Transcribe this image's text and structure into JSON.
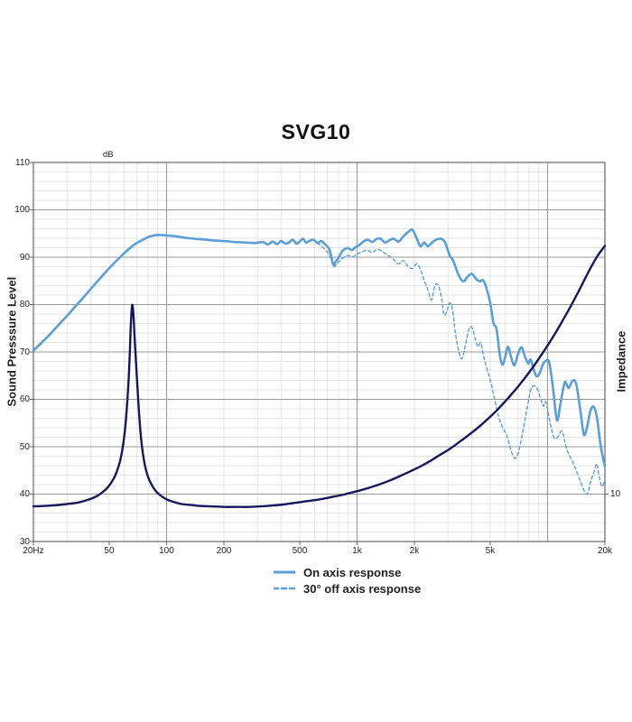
{
  "title": "SVG10",
  "legend": {
    "items": [
      {
        "label": "On axis response",
        "style": "solid"
      },
      {
        "label": "30° off axis response",
        "style": "dashed"
      }
    ]
  },
  "colors": {
    "response_blue": "#5b9fd6",
    "impedance_navy": "#17175c",
    "grid_major": "#9a9a9a",
    "grid_minor": "#dddddd",
    "frame": "#666666",
    "text": "#222222"
  },
  "chart_data": {
    "type": "line",
    "title": "SVG10",
    "x_scale": "log",
    "x_range": [
      20,
      20000
    ],
    "y_left": {
      "label": "Sound Presssure Level",
      "unit": "dB",
      "range": [
        30,
        110
      ],
      "major_step": 10,
      "minor_step": 2,
      "ticks": [
        110,
        100,
        90,
        80,
        70,
        60,
        50,
        40,
        30
      ]
    },
    "y_right": {
      "label": "Impedance",
      "ticks": [
        {
          "label": "10",
          "at_left_db": 40
        }
      ]
    },
    "x_ticks": [
      {
        "label": "20Hz",
        "f": 20
      },
      {
        "label": "50",
        "f": 50
      },
      {
        "label": "100",
        "f": 100
      },
      {
        "label": "200",
        "f": 200
      },
      {
        "label": "500",
        "f": 500
      },
      {
        "label": "1k",
        "f": 1000
      },
      {
        "label": "2k",
        "f": 2000
      },
      {
        "label": "5k",
        "f": 5000
      },
      {
        "label": "20k",
        "f": 20000
      }
    ],
    "grid": {
      "shown": true,
      "emphasized_freqs": [
        100,
        1000,
        10000
      ]
    },
    "legend_position": "bottom-center",
    "series": [
      {
        "name": "On axis response",
        "style": "solid",
        "color": "#5b9fd6",
        "width": 2.6,
        "points": [
          [
            20,
            70.3
          ],
          [
            22,
            71.9
          ],
          [
            24,
            73.4
          ],
          [
            26,
            74.9
          ],
          [
            28,
            76.3
          ],
          [
            30,
            77.6
          ],
          [
            33,
            79.5
          ],
          [
            36,
            81.2
          ],
          [
            40,
            83.3
          ],
          [
            44,
            85.2
          ],
          [
            48,
            86.9
          ],
          [
            52,
            88.4
          ],
          [
            57,
            90.0
          ],
          [
            62,
            91.4
          ],
          [
            68,
            92.7
          ],
          [
            75,
            93.7
          ],
          [
            82,
            94.4
          ],
          [
            90,
            94.7
          ],
          [
            100,
            94.6
          ],
          [
            112,
            94.4
          ],
          [
            125,
            94.1
          ],
          [
            140,
            93.9
          ],
          [
            160,
            93.7
          ],
          [
            180,
            93.5
          ],
          [
            200,
            93.4
          ],
          [
            230,
            93.2
          ],
          [
            260,
            93.1
          ],
          [
            290,
            93.0
          ],
          [
            320,
            93.2
          ],
          [
            340,
            92.7
          ],
          [
            360,
            93.3
          ],
          [
            380,
            92.8
          ],
          [
            400,
            93.4
          ],
          [
            420,
            92.9
          ],
          [
            440,
            93.1
          ],
          [
            460,
            93.7
          ],
          [
            480,
            92.9
          ],
          [
            500,
            93.3
          ],
          [
            520,
            93.9
          ],
          [
            540,
            93.1
          ],
          [
            560,
            93.4
          ],
          [
            590,
            93.7
          ],
          [
            620,
            93.0
          ],
          [
            650,
            93.4
          ],
          [
            680,
            92.7
          ],
          [
            710,
            91.9
          ],
          [
            730,
            90.5
          ],
          [
            750,
            88.4
          ],
          [
            775,
            89.1
          ],
          [
            800,
            89.9
          ],
          [
            830,
            91.1
          ],
          [
            860,
            91.7
          ],
          [
            900,
            91.9
          ],
          [
            940,
            91.5
          ],
          [
            980,
            92.1
          ],
          [
            1030,
            92.6
          ],
          [
            1080,
            93.3
          ],
          [
            1140,
            93.7
          ],
          [
            1200,
            93.2
          ],
          [
            1260,
            93.8
          ],
          [
            1330,
            93.9
          ],
          [
            1400,
            93.1
          ],
          [
            1480,
            93.6
          ],
          [
            1560,
            93.9
          ],
          [
            1650,
            93.3
          ],
          [
            1750,
            94.4
          ],
          [
            1850,
            95.3
          ],
          [
            1950,
            95.8
          ],
          [
            2060,
            93.9
          ],
          [
            2150,
            92.3
          ],
          [
            2250,
            93.1
          ],
          [
            2350,
            92.3
          ],
          [
            2460,
            93.0
          ],
          [
            2600,
            93.7
          ],
          [
            2760,
            93.9
          ],
          [
            2900,
            93.1
          ],
          [
            3060,
            90.4
          ],
          [
            3200,
            89.2
          ],
          [
            3400,
            86.4
          ],
          [
            3600,
            84.9
          ],
          [
            3800,
            85.9
          ],
          [
            4000,
            86.5
          ],
          [
            4200,
            85.5
          ],
          [
            4400,
            84.9
          ],
          [
            4600,
            85.1
          ],
          [
            4800,
            83.2
          ],
          [
            5000,
            80.3
          ],
          [
            5200,
            76.1
          ],
          [
            5400,
            74.8
          ],
          [
            5600,
            69.6
          ],
          [
            5800,
            67.3
          ],
          [
            6000,
            69.1
          ],
          [
            6200,
            71.1
          ],
          [
            6450,
            68.8
          ],
          [
            6700,
            67.2
          ],
          [
            7000,
            69.6
          ],
          [
            7300,
            71.0
          ],
          [
            7600,
            69.1
          ],
          [
            7900,
            67.6
          ],
          [
            8150,
            68.4
          ],
          [
            8450,
            66.4
          ],
          [
            8750,
            64.9
          ],
          [
            9100,
            65.6
          ],
          [
            9450,
            67.4
          ],
          [
            9800,
            68.1
          ],
          [
            10200,
            67.8
          ],
          [
            10700,
            62.1
          ],
          [
            11200,
            55.6
          ],
          [
            11700,
            59.2
          ],
          [
            12300,
            63.6
          ],
          [
            12900,
            62.4
          ],
          [
            13500,
            63.9
          ],
          [
            14100,
            63.4
          ],
          [
            14800,
            58.2
          ],
          [
            15500,
            52.6
          ],
          [
            16100,
            54.1
          ],
          [
            16800,
            57.6
          ],
          [
            17500,
            58.4
          ],
          [
            18200,
            55.9
          ],
          [
            19000,
            50.2
          ],
          [
            20000,
            45.8
          ]
        ]
      },
      {
        "name": "30° off axis response",
        "style": "dashed",
        "color": "#5b9fd6",
        "width": 1.4,
        "points": [
          [
            620,
            93.0
          ],
          [
            660,
            92.1
          ],
          [
            700,
            91.0
          ],
          [
            730,
            89.7
          ],
          [
            755,
            88.0
          ],
          [
            785,
            88.7
          ],
          [
            820,
            89.4
          ],
          [
            860,
            90.1
          ],
          [
            900,
            90.4
          ],
          [
            950,
            90.1
          ],
          [
            1000,
            90.7
          ],
          [
            1060,
            91.1
          ],
          [
            1130,
            91.5
          ],
          [
            1200,
            91.0
          ],
          [
            1280,
            91.7
          ],
          [
            1360,
            91.2
          ],
          [
            1450,
            90.4
          ],
          [
            1550,
            89.6
          ],
          [
            1650,
            88.6
          ],
          [
            1750,
            89.3
          ],
          [
            1850,
            88.1
          ],
          [
            1950,
            87.6
          ],
          [
            2060,
            88.6
          ],
          [
            2160,
            87.2
          ],
          [
            2260,
            84.9
          ],
          [
            2360,
            83.0
          ],
          [
            2460,
            81.0
          ],
          [
            2560,
            83.9
          ],
          [
            2660,
            84.2
          ],
          [
            2760,
            82.0
          ],
          [
            2860,
            77.9
          ],
          [
            2960,
            78.6
          ],
          [
            3060,
            80.4
          ],
          [
            3170,
            78.9
          ],
          [
            3280,
            74.1
          ],
          [
            3420,
            70.1
          ],
          [
            3560,
            68.6
          ],
          [
            3710,
            71.6
          ],
          [
            3860,
            74.8
          ],
          [
            4010,
            75.2
          ],
          [
            4160,
            73.0
          ],
          [
            4310,
            71.1
          ],
          [
            4460,
            71.9
          ],
          [
            4620,
            69.0
          ],
          [
            4810,
            66.4
          ],
          [
            5010,
            64.0
          ],
          [
            5210,
            61.0
          ],
          [
            5510,
            56.6
          ],
          [
            5810,
            54.1
          ],
          [
            6110,
            52.4
          ],
          [
            6410,
            49.4
          ],
          [
            6710,
            47.6
          ],
          [
            7010,
            48.6
          ],
          [
            7410,
            53.1
          ],
          [
            7810,
            58.1
          ],
          [
            8210,
            62.3
          ],
          [
            8710,
            62.6
          ],
          [
            9210,
            60.1
          ],
          [
            9510,
            58.6
          ],
          [
            9810,
            59.4
          ],
          [
            10310,
            55.1
          ],
          [
            10810,
            51.9
          ],
          [
            11310,
            52.1
          ],
          [
            11910,
            53.3
          ],
          [
            12410,
            50.4
          ],
          [
            12710,
            49.1
          ],
          [
            13310,
            47.4
          ],
          [
            14010,
            45.4
          ],
          [
            14810,
            42.9
          ],
          [
            15610,
            40.6
          ],
          [
            16210,
            40.1
          ],
          [
            16810,
            42.6
          ],
          [
            17510,
            44.6
          ],
          [
            18110,
            46.4
          ],
          [
            18710,
            43.4
          ],
          [
            19310,
            41.6
          ],
          [
            20000,
            43.1
          ]
        ]
      },
      {
        "name": "Impedance",
        "style": "solid",
        "color": "#17175c",
        "width": 2.4,
        "points": [
          [
            20,
            37.4
          ],
          [
            25,
            37.6
          ],
          [
            30,
            37.9
          ],
          [
            35,
            38.3
          ],
          [
            40,
            39.0
          ],
          [
            44,
            39.8
          ],
          [
            48,
            41.0
          ],
          [
            51,
            42.3
          ],
          [
            54,
            44.1
          ],
          [
            57,
            47.0
          ],
          [
            59,
            50.1
          ],
          [
            61,
            55.1
          ],
          [
            63,
            63.0
          ],
          [
            64,
            69.0
          ],
          [
            65,
            76.1
          ],
          [
            66,
            79.9
          ],
          [
            67,
            77.9
          ],
          [
            68,
            73.0
          ],
          [
            70,
            64.0
          ],
          [
            72,
            56.1
          ],
          [
            74,
            50.6
          ],
          [
            77,
            46.1
          ],
          [
            80,
            43.6
          ],
          [
            84,
            41.8
          ],
          [
            88,
            40.6
          ],
          [
            93,
            39.7
          ],
          [
            100,
            38.9
          ],
          [
            110,
            38.3
          ],
          [
            120,
            37.9
          ],
          [
            135,
            37.7
          ],
          [
            150,
            37.5
          ],
          [
            170,
            37.4
          ],
          [
            200,
            37.3
          ],
          [
            235,
            37.3
          ],
          [
            270,
            37.3
          ],
          [
            310,
            37.4
          ],
          [
            360,
            37.6
          ],
          [
            410,
            37.8
          ],
          [
            460,
            38.1
          ],
          [
            520,
            38.4
          ],
          [
            590,
            38.7
          ],
          [
            660,
            39.0
          ],
          [
            740,
            39.4
          ],
          [
            830,
            39.8
          ],
          [
            930,
            40.3
          ],
          [
            1040,
            40.8
          ],
          [
            1170,
            41.4
          ],
          [
            1320,
            42.1
          ],
          [
            1490,
            42.9
          ],
          [
            1680,
            43.8
          ],
          [
            1900,
            44.8
          ],
          [
            2140,
            45.8
          ],
          [
            2420,
            47.0
          ],
          [
            2730,
            48.3
          ],
          [
            3080,
            49.6
          ],
          [
            3470,
            51.1
          ],
          [
            3920,
            52.7
          ],
          [
            4420,
            54.4
          ],
          [
            4990,
            56.3
          ],
          [
            5630,
            58.4
          ],
          [
            6350,
            60.7
          ],
          [
            7160,
            63.2
          ],
          [
            8080,
            65.9
          ],
          [
            9110,
            68.9
          ],
          [
            10280,
            72.1
          ],
          [
            11600,
            75.6
          ],
          [
            13080,
            79.3
          ],
          [
            14760,
            83.3
          ],
          [
            16650,
            87.4
          ],
          [
            18300,
            90.3
          ],
          [
            20000,
            92.4
          ]
        ]
      }
    ]
  }
}
